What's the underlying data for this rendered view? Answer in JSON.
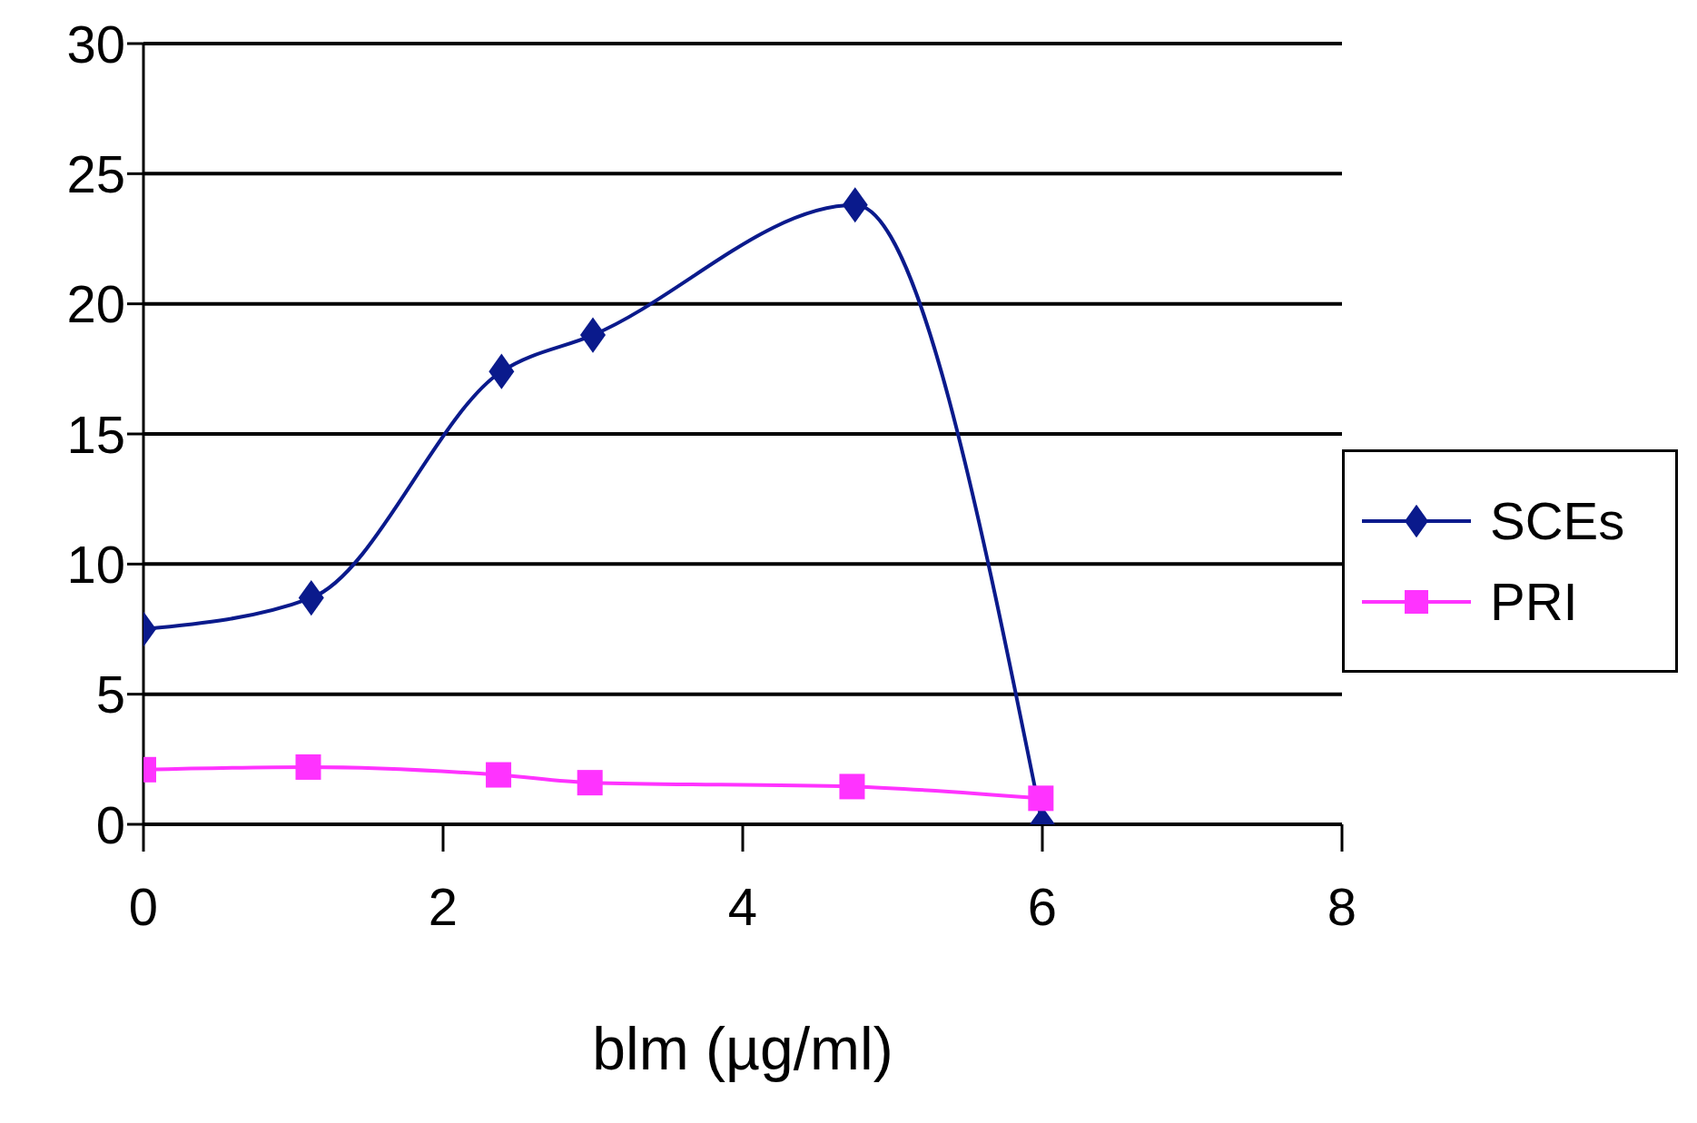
{
  "chart_data": {
    "type": "line",
    "xlabel": "blm (µg/ml)",
    "xlim": [
      0,
      8
    ],
    "xticks": [
      0,
      2,
      4,
      6,
      8
    ],
    "ylim": [
      0,
      30
    ],
    "yticks": [
      0,
      5,
      10,
      15,
      20,
      25,
      30
    ],
    "grid": "y",
    "legend": "right",
    "series": [
      {
        "name": "SCEs",
        "color": "#0a1a8c",
        "marker": "diamond",
        "x": [
          0,
          1.12,
          2.39,
          3.0,
          4.75,
          6.0
        ],
        "values": [
          7.5,
          8.7,
          17.4,
          18.8,
          23.8,
          0
        ]
      },
      {
        "name": "PRI",
        "color": "#ff33ff",
        "marker": "square",
        "x": [
          0,
          1.1,
          2.37,
          2.98,
          4.73,
          5.99
        ],
        "values": [
          2.1,
          2.2,
          1.9,
          1.6,
          1.45,
          1.0
        ]
      }
    ]
  }
}
